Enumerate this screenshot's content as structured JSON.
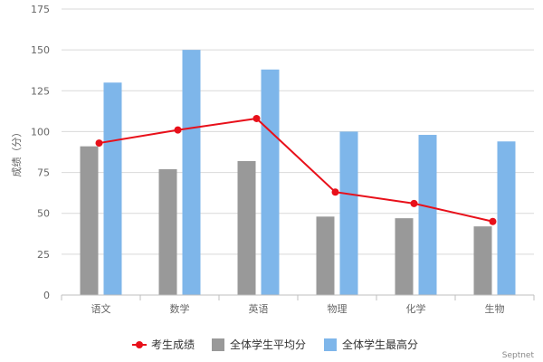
{
  "chart_data": {
    "type": "bar",
    "ylabel": "成绩（分）",
    "ylim": [
      0,
      175
    ],
    "yticks": [
      0,
      25,
      50,
      75,
      100,
      125,
      150,
      175
    ],
    "categories": [
      "语文",
      "数学",
      "英语",
      "物理",
      "化学",
      "生物"
    ],
    "grid": true,
    "legend_position": "bottom",
    "series": [
      {
        "name": "考生成绩",
        "type": "line",
        "color": "#e8101a",
        "values": [
          93,
          101,
          108,
          63,
          56,
          45
        ]
      },
      {
        "name": "全体学生平均分",
        "type": "bar",
        "color": "#999999",
        "values": [
          91,
          77,
          82,
          48,
          47,
          42
        ]
      },
      {
        "name": "全体学生最高分",
        "type": "bar",
        "color": "#7eb6ea",
        "values": [
          130,
          150,
          138,
          100,
          98,
          94
        ]
      }
    ]
  },
  "credit": "Septnet"
}
